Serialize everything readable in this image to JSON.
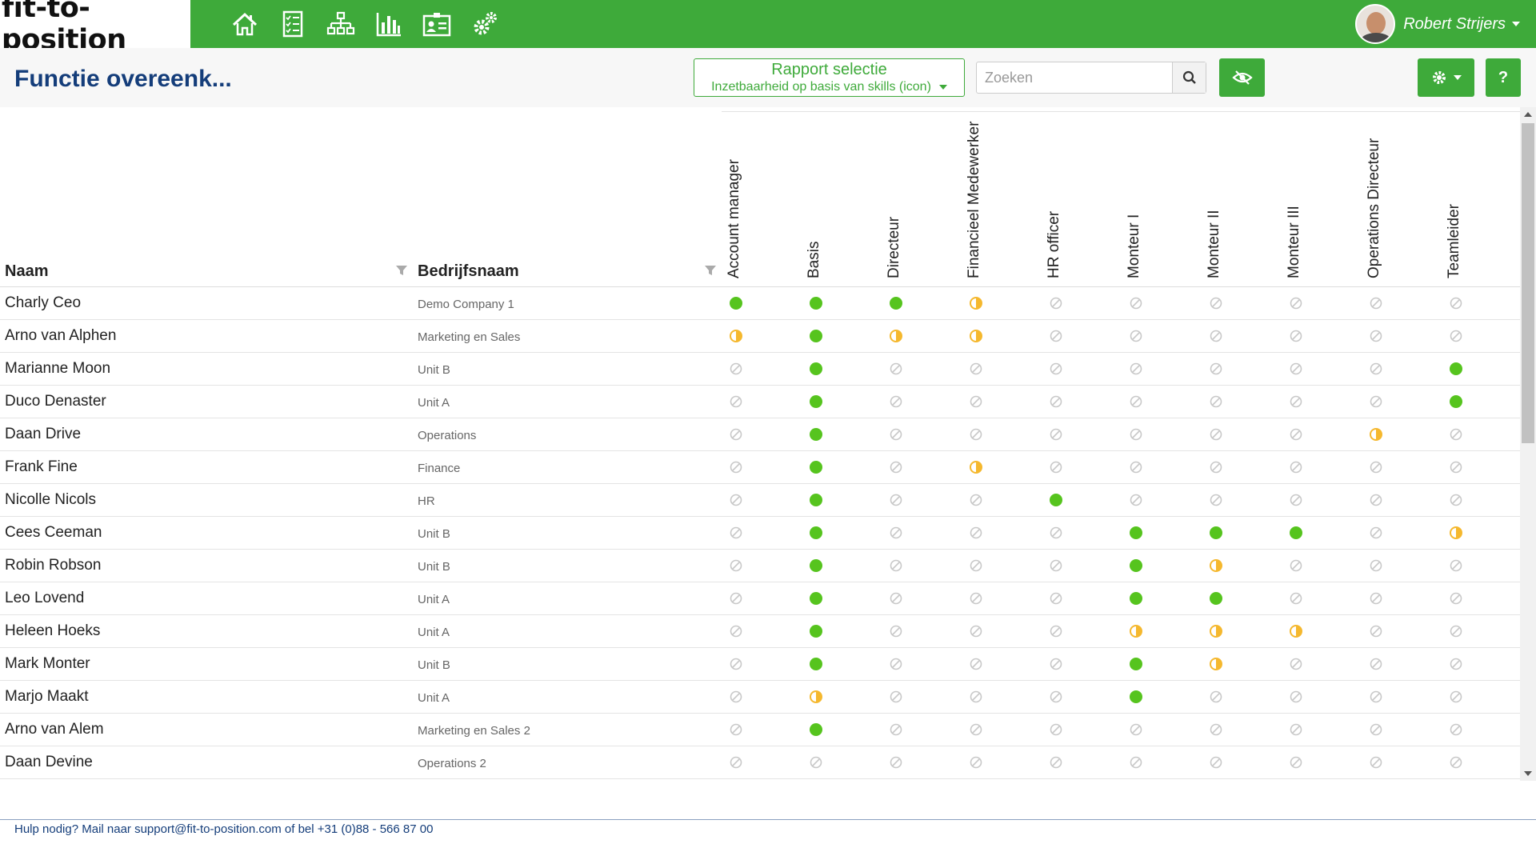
{
  "app": {
    "logo_text": "fit-to-position"
  },
  "nav": {
    "items": [
      {
        "icon": "home-icon"
      },
      {
        "icon": "checklist-icon"
      },
      {
        "icon": "org-chart-icon"
      },
      {
        "icon": "bar-chart-icon"
      },
      {
        "icon": "id-card-icon"
      },
      {
        "icon": "cogs-icon"
      }
    ]
  },
  "user": {
    "name": "Robert Strijers"
  },
  "header": {
    "title": "Functie overeenk...",
    "report": {
      "title": "Rapport selectie",
      "selected": "Inzetbaarheid op basis van skills (icon)"
    },
    "search": {
      "placeholder": "Zoeken",
      "value": ""
    },
    "help_label": "?"
  },
  "table": {
    "columns": {
      "name": "Naam",
      "company": "Bedrijfsnaam"
    },
    "functions": [
      "Account manager",
      "Basis",
      "Directeur",
      "Financieel Medewerker",
      "HR officer",
      "Monteur I",
      "Monteur II",
      "Monteur III",
      "Operations Directeur",
      "Teamleider"
    ],
    "rows": [
      {
        "name": "Charly Ceo",
        "company": "Demo Company 1",
        "status": [
          "full",
          "full",
          "full",
          "partial",
          "none",
          "none",
          "none",
          "none",
          "none",
          "none"
        ]
      },
      {
        "name": "Arno van Alphen",
        "company": "Marketing en Sales",
        "status": [
          "partial",
          "full",
          "partial",
          "partial",
          "none",
          "none",
          "none",
          "none",
          "none",
          "none"
        ]
      },
      {
        "name": "Marianne Moon",
        "company": "Unit B",
        "status": [
          "none",
          "full",
          "none",
          "none",
          "none",
          "none",
          "none",
          "none",
          "none",
          "full"
        ]
      },
      {
        "name": "Duco Denaster",
        "company": "Unit A",
        "status": [
          "none",
          "full",
          "none",
          "none",
          "none",
          "none",
          "none",
          "none",
          "none",
          "full"
        ]
      },
      {
        "name": "Daan Drive",
        "company": "Operations",
        "status": [
          "none",
          "full",
          "none",
          "none",
          "none",
          "none",
          "none",
          "none",
          "partial",
          "none"
        ]
      },
      {
        "name": "Frank Fine",
        "company": "Finance",
        "status": [
          "none",
          "full",
          "none",
          "partial",
          "none",
          "none",
          "none",
          "none",
          "none",
          "none"
        ]
      },
      {
        "name": "Nicolle Nicols",
        "company": "HR",
        "status": [
          "none",
          "full",
          "none",
          "none",
          "full",
          "none",
          "none",
          "none",
          "none",
          "none"
        ]
      },
      {
        "name": "Cees Ceeman",
        "company": "Unit B",
        "status": [
          "none",
          "full",
          "none",
          "none",
          "none",
          "full",
          "full",
          "full",
          "none",
          "partial"
        ]
      },
      {
        "name": "Robin Robson",
        "company": "Unit B",
        "status": [
          "none",
          "full",
          "none",
          "none",
          "none",
          "full",
          "partial",
          "none",
          "none",
          "none"
        ]
      },
      {
        "name": "Leo Lovend",
        "company": "Unit A",
        "status": [
          "none",
          "full",
          "none",
          "none",
          "none",
          "full",
          "full",
          "none",
          "none",
          "none"
        ]
      },
      {
        "name": "Heleen Hoeks",
        "company": "Unit A",
        "status": [
          "none",
          "full",
          "none",
          "none",
          "none",
          "partial",
          "partial",
          "partial",
          "none",
          "none"
        ]
      },
      {
        "name": "Mark Monter",
        "company": "Unit B",
        "status": [
          "none",
          "full",
          "none",
          "none",
          "none",
          "full",
          "partial",
          "none",
          "none",
          "none"
        ]
      },
      {
        "name": "Marjo Maakt",
        "company": "Unit A",
        "status": [
          "none",
          "partial",
          "none",
          "none",
          "none",
          "full",
          "none",
          "none",
          "none",
          "none"
        ]
      },
      {
        "name": "Arno van Alem",
        "company": "Marketing en Sales 2",
        "status": [
          "none",
          "full",
          "none",
          "none",
          "none",
          "none",
          "none",
          "none",
          "none",
          "none"
        ]
      },
      {
        "name": "Daan Devine",
        "company": "Operations 2",
        "status": [
          "none",
          "none",
          "none",
          "none",
          "none",
          "none",
          "none",
          "none",
          "none",
          "none"
        ]
      }
    ]
  },
  "footer": {
    "text": "Hulp nodig? Mail naar support@fit-to-position.com of bel +31 (0)88 - 566 87 00"
  },
  "colors": {
    "brand_green": "#3eaa3a",
    "full": "#56c41e",
    "partial": "#f5b82e",
    "none": "#c8c8c8",
    "title": "#143d7a"
  }
}
